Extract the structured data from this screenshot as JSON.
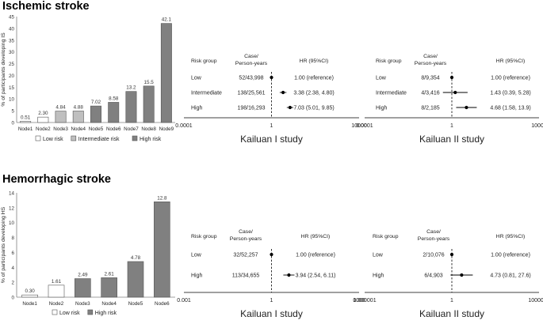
{
  "sections": {
    "ischemic_title": "Ischemic stroke",
    "hemorrhagic_title": "Hemorrhagic stroke"
  },
  "colors": {
    "low": "#ffffff",
    "intermediate": "#bfbfbf",
    "high": "#808080",
    "axis": "#808080"
  },
  "chart_data": [
    {
      "type": "bar",
      "panel": "ischemic",
      "ylabel": "% of participants developing IS",
      "ylim": [
        0,
        45
      ],
      "yticks": [
        0,
        5,
        10,
        15,
        20,
        25,
        30,
        35,
        40,
        45
      ],
      "categories": [
        "Node1",
        "Node2",
        "Node3",
        "Node4",
        "Node5",
        "Node6",
        "Node7",
        "Node8",
        "Node9"
      ],
      "values": [
        0.51,
        2.3,
        4.84,
        4.88,
        7.02,
        8.58,
        13.2,
        15.5,
        42.1
      ],
      "value_labels": [
        "0.51",
        "2.30",
        "4.84",
        "4.88",
        "7.02",
        "8.58",
        "13.2",
        "15.5",
        "42.1"
      ],
      "risk": [
        "low",
        "low",
        "intermediate",
        "intermediate",
        "high",
        "high",
        "high",
        "high",
        "high"
      ],
      "legend": [
        {
          "key": "low",
          "label": "Low risk"
        },
        {
          "key": "intermediate",
          "label": "Intermediate risk"
        },
        {
          "key": "high",
          "label": "High risk"
        }
      ]
    },
    {
      "type": "bar",
      "panel": "hemorrhagic",
      "ylabel": "% of participants developing HS",
      "ylim": [
        0,
        14
      ],
      "yticks": [
        0,
        2,
        4,
        6,
        8,
        10,
        12,
        14
      ],
      "categories": [
        "Node1",
        "Node2",
        "Node3",
        "Node4",
        "Node5",
        "Node6"
      ],
      "values": [
        0.3,
        1.61,
        2.49,
        2.61,
        4.78,
        12.8
      ],
      "value_labels": [
        "0.30",
        "1.61",
        "2.49",
        "2.61",
        "4.78",
        "12.8"
      ],
      "risk": [
        "low",
        "low",
        "high",
        "high",
        "high",
        "high"
      ],
      "legend": [
        {
          "key": "low",
          "label": "Low risk"
        },
        {
          "key": "high",
          "label": "High risk"
        }
      ]
    },
    {
      "type": "forest",
      "panel": "is-k1",
      "study": "Kailuan I study",
      "headers": {
        "group": "Risk group",
        "case1": "Case/",
        "case2": "Person-years",
        "hr": "HR (95%CI)"
      },
      "axis": {
        "min_label": "0.0001",
        "ref_label": "1",
        "max_label": "10000",
        "log_min": -4,
        "log_max": 4
      },
      "rows": [
        {
          "group": "Low",
          "case": "52/43,998",
          "hr_text": "1.00 (reference)",
          "hr": 1.0,
          "lo": null,
          "hi": null
        },
        {
          "group": "Intermediate",
          "case": "138/25,561",
          "hr_text": "3.38 (2.38, 4.80)",
          "hr": 3.38,
          "lo": 2.38,
          "hi": 4.8
        },
        {
          "group": "High",
          "case": "198/16,293",
          "hr_text": "7.03 (5.01, 9.85)",
          "hr": 7.03,
          "lo": 5.01,
          "hi": 9.85
        }
      ]
    },
    {
      "type": "forest",
      "panel": "is-k2",
      "study": "Kailuan II study",
      "headers": {
        "group": "Risk group",
        "case1": "Case/",
        "case2": "Person-years",
        "hr": "HR (95%CI)"
      },
      "axis": {
        "min_label": "0.0001",
        "ref_label": "1",
        "max_label": "10000",
        "log_min": -4,
        "log_max": 4
      },
      "rows": [
        {
          "group": "Low",
          "case": "8/9,354",
          "hr_text": "1.00 (reference)",
          "hr": 1.0,
          "lo": null,
          "hi": null
        },
        {
          "group": "Intermediate",
          "case": "4/3,416",
          "hr_text": "1.43 (0.39, 5.28)",
          "hr": 1.43,
          "lo": 0.39,
          "hi": 5.28
        },
        {
          "group": "High",
          "case": "8/2,185",
          "hr_text": "4.68 (1.58, 13.9)",
          "hr": 4.68,
          "lo": 1.58,
          "hi": 13.9
        }
      ]
    },
    {
      "type": "forest",
      "panel": "hs-k1",
      "study": "Kailuan I study",
      "headers": {
        "group": "Risk group",
        "case1": "Case/",
        "case2": "Person-years",
        "hr": "HR (95%CI)"
      },
      "axis": {
        "min_label": "0.001",
        "ref_label": "1",
        "max_label": "1000",
        "log_min": -3,
        "log_max": 3
      },
      "rows": [
        {
          "group": "Low",
          "case": "32/52,257",
          "hr_text": "1.00 (reference)",
          "hr": 1.0,
          "lo": null,
          "hi": null
        },
        {
          "group": "High",
          "case": "113/34,655",
          "hr_text": "3.94 (2.54, 6.11)",
          "hr": 3.94,
          "lo": 2.54,
          "hi": 6.11
        }
      ]
    },
    {
      "type": "forest",
      "panel": "hs-k2",
      "study": "Kailuan II study",
      "headers": {
        "group": "Risk group",
        "case1": "Case/",
        "case2": "Person-years",
        "hr": "HR (95%CI)"
      },
      "axis": {
        "min_label": "0.000001",
        "ref_label": "1",
        "max_label": "1000000",
        "log_min": -6,
        "log_max": 6
      },
      "rows": [
        {
          "group": "Low",
          "case": "2/10,076",
          "hr_text": "1.00 (reference)",
          "hr": 1.0,
          "lo": null,
          "hi": null
        },
        {
          "group": "High",
          "case": "6/4,903",
          "hr_text": "4.73 (0.81, 27.6)",
          "hr": 4.73,
          "lo": 0.81,
          "hi": 27.6
        }
      ]
    }
  ]
}
